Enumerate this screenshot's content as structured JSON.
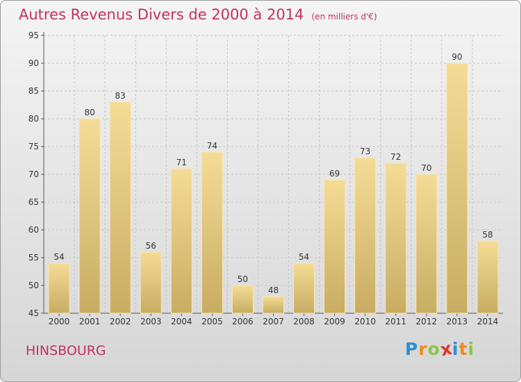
{
  "chart_data": {
    "type": "bar",
    "title": "Autres Revenus Divers de 2000 à 2014",
    "subtitle": "(en milliers d'€)",
    "categories": [
      "2000",
      "2001",
      "2002",
      "2003",
      "2004",
      "2005",
      "2006",
      "2007",
      "2008",
      "2009",
      "2010",
      "2011",
      "2012",
      "2013",
      "2014"
    ],
    "values": [
      54,
      80,
      83,
      56,
      71,
      74,
      50,
      48,
      54,
      69,
      73,
      72,
      70,
      90,
      58
    ],
    "ylim": [
      45,
      95
    ],
    "yticks": [
      45,
      50,
      55,
      60,
      65,
      70,
      75,
      80,
      85,
      90,
      95
    ],
    "grid": true,
    "bar_color_top": "#f5dc96",
    "bar_color_bottom": "#c8ac62"
  },
  "location": "HINSBOURG",
  "logo": {
    "text": "Proxiti",
    "letters": [
      {
        "ch": "P",
        "color": "#2f8fd1"
      },
      {
        "ch": "r",
        "color": "#f08a1c"
      },
      {
        "ch": "o",
        "color": "#8cc63f"
      },
      {
        "ch": "x",
        "color": "#e2342c"
      },
      {
        "ch": "i",
        "color": "#2f8fd1"
      },
      {
        "ch": "t",
        "color": "#f08a1c"
      },
      {
        "ch": "i",
        "color": "#8cc63f"
      }
    ]
  }
}
